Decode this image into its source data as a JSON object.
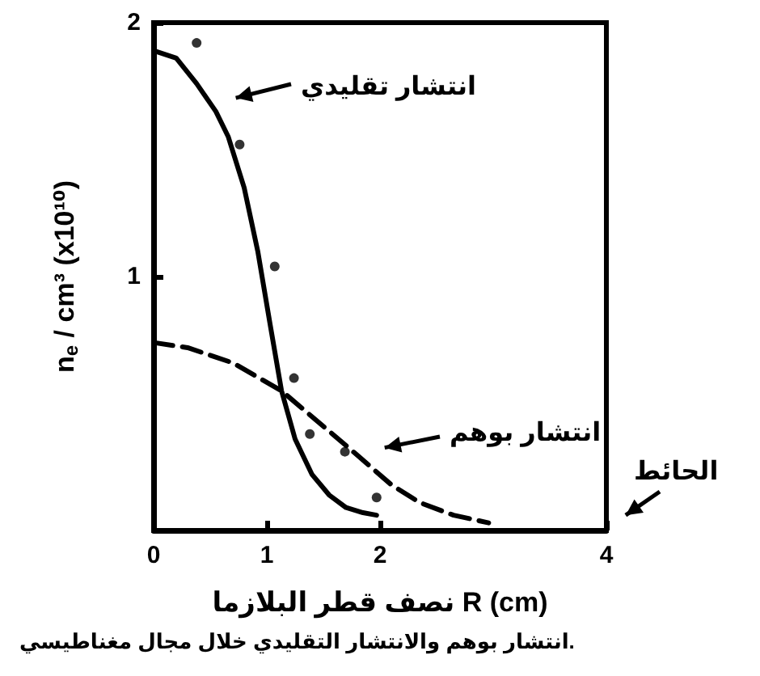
{
  "chart_data": {
    "type": "line",
    "xlabel": "نصف قطر البلازما R (cm)",
    "ylabel": "n$_{e}$ / cm³ (x10¹⁰)",
    "xlim": [
      0,
      4
    ],
    "ylim": [
      0,
      2
    ],
    "xticks": [
      0,
      1,
      2,
      4
    ],
    "yticks": [
      1,
      2
    ],
    "grid": false,
    "series": [
      {
        "color": "#000000",
        "line_style": "solid",
        "marker": "none",
        "x": [
          0,
          0.2,
          0.38,
          0.55,
          0.66,
          0.8,
          0.92,
          1.03,
          1.13,
          1.25,
          1.4,
          1.55,
          1.7,
          1.85,
          1.97
        ],
        "values": [
          1.89,
          1.86,
          1.76,
          1.65,
          1.55,
          1.35,
          1.1,
          0.81,
          0.55,
          0.36,
          0.22,
          0.14,
          0.09,
          0.07,
          0.06
        ]
      },
      {
        "color": "#000000",
        "line_style": "dashed",
        "marker": "none",
        "x": [
          0,
          0.3,
          0.7,
          1.13,
          1.5,
          1.79,
          2.1,
          2.35,
          2.65,
          2.96
        ],
        "values": [
          0.74,
          0.72,
          0.66,
          0.55,
          0.41,
          0.3,
          0.18,
          0.11,
          0.06,
          0.03
        ]
      },
      {
        "type": "scatter",
        "color": "#000000",
        "marker": "circle",
        "x": [
          0.38,
          0.76,
          1.07,
          1.24,
          1.38,
          1.69,
          1.97
        ],
        "values": [
          1.92,
          1.52,
          1.04,
          0.6,
          0.38,
          0.31,
          0.13
        ]
      }
    ],
    "annotations": [
      "انتشار تقليدي",
      "انتشار بوهم",
      "الحائط",
      "انتشار بوهم والانتشار التقليدي خلال مجال مغناطيسي."
    ]
  }
}
